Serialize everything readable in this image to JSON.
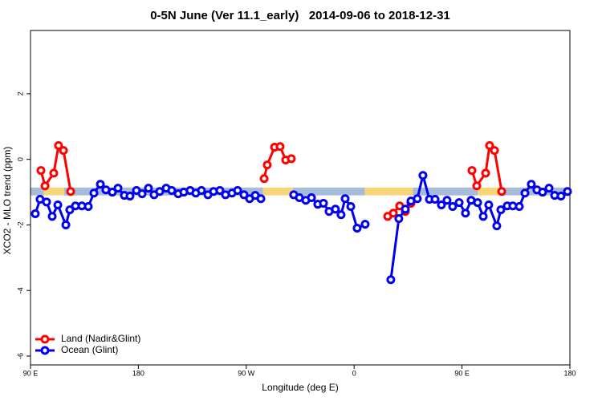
{
  "chart_data": {
    "type": "line",
    "title": "0-5N June (Ver 11.1_early)   2014-09-06 to 2018-12-31",
    "x_label": "Longitude (deg E)",
    "y_label": "XCO2 - MLO trend (ppm)",
    "xlim": [
      90,
      540
    ],
    "xticks": [
      {
        "value": 90,
        "label": "90 E"
      },
      {
        "value": 180,
        "label": "180"
      },
      {
        "value": 270,
        "label": "90 W"
      },
      {
        "value": 360,
        "label": "0"
      },
      {
        "value": 450,
        "label": "90 E"
      },
      {
        "value": 540,
        "label": "180"
      }
    ],
    "ylim": [
      -6.27,
      3.93
    ],
    "yticks": [
      -6,
      -4,
      -2,
      0,
      2
    ],
    "legend": "bottom-left",
    "surface_band": {
      "ymin": -1.1,
      "ymax": -0.86,
      "segments": [
        {
          "from": 90,
          "to": 101,
          "color": "#a7bcd8"
        },
        {
          "from": 101,
          "to": 118,
          "color": "#f7d57a"
        },
        {
          "from": 118,
          "to": 284,
          "color": "#a7bcd8"
        },
        {
          "from": 284,
          "to": 309,
          "color": "#f7d57a"
        },
        {
          "from": 309,
          "to": 369,
          "color": "#a7bcd8"
        },
        {
          "from": 369,
          "to": 409,
          "color": "#f7d57a"
        },
        {
          "from": 409,
          "to": 463,
          "color": "#a7bcd8"
        },
        {
          "from": 463,
          "to": 483,
          "color": "#f7d57a"
        },
        {
          "from": 483,
          "to": 540,
          "color": "#a7bcd8"
        }
      ]
    },
    "series": [
      {
        "name": "Land (Nadir&Glint)",
        "color": "#ff0000",
        "x": [
          98.7,
          102.1,
          109.4,
          113.4,
          117.5,
          123.5,
          null,
          284.9,
          287.5,
          293.6,
          298.2,
          302.9,
          307.6,
          null,
          388.0,
          392.7,
          398.0,
          402.7,
          407.4,
          null,
          458.3,
          462.3,
          469.7,
          473.0,
          477.1,
          483.1
        ],
        "values": [
          -0.34,
          -0.81,
          -0.42,
          0.42,
          0.27,
          -0.98,
          null,
          -0.59,
          -0.17,
          0.37,
          0.39,
          -0.02,
          0.02,
          null,
          -1.74,
          -1.64,
          -1.42,
          -1.59,
          -1.34,
          null,
          -0.34,
          -0.81,
          -0.42,
          0.42,
          0.27,
          -0.98
        ]
      },
      {
        "name": "Ocean (Glint)",
        "color": "#0000ee",
        "x": [
          94.0,
          98.0,
          103.4,
          108.1,
          112.8,
          119.5,
          122.8,
          127.5,
          132.9,
          138.2,
          142.9,
          148.3,
          152.9,
          158.3,
          163.0,
          168.3,
          173.0,
          178.4,
          183.1,
          188.4,
          193.1,
          197.8,
          203.2,
          207.8,
          213.2,
          217.9,
          223.2,
          227.9,
          232.6,
          238.0,
          242.7,
          248.0,
          252.7,
          258.1,
          262.8,
          268.1,
          272.8,
          277.5,
          282.2,
          null,
          309.6,
          314.3,
          319.7,
          324.4,
          329.7,
          334.4,
          339.1,
          344.4,
          349.1,
          352.5,
          357.2,
          362.5,
          369.2,
          null,
          390.6,
          397.3,
          402.7,
          407.4,
          412.7,
          417.4,
          422.8,
          427.5,
          432.8,
          437.5,
          442.2,
          447.6,
          452.9,
          457.6,
          463.0,
          467.7,
          472.3,
          479.0,
          482.4,
          487.7,
          492.4,
          497.8,
          502.5,
          507.8,
          512.5,
          517.2,
          522.6,
          527.3,
          532.6,
          538.0
        ],
        "values": [
          -1.66,
          -1.22,
          -1.3,
          -1.74,
          -1.39,
          -2.0,
          -1.54,
          -1.42,
          -1.42,
          -1.44,
          -1.03,
          -0.76,
          -0.93,
          -1.0,
          -0.88,
          -1.1,
          -1.12,
          -0.95,
          -1.05,
          -0.88,
          -1.08,
          -0.98,
          -0.88,
          -0.95,
          -1.05,
          -1.0,
          -0.95,
          -1.03,
          -0.95,
          -1.08,
          -0.98,
          -0.95,
          -1.08,
          -1.03,
          -0.95,
          -1.08,
          -1.2,
          -1.1,
          -1.2,
          null,
          -1.08,
          -1.17,
          -1.25,
          -1.17,
          -1.37,
          -1.34,
          -1.59,
          -1.52,
          -1.69,
          -1.2,
          -1.44,
          -2.1,
          -1.98,
          null,
          -3.67,
          -1.81,
          -1.52,
          -1.27,
          -1.2,
          -0.49,
          -1.22,
          -1.22,
          -1.39,
          -1.25,
          -1.44,
          -1.32,
          -1.64,
          -1.25,
          -1.32,
          -1.74,
          -1.39,
          -2.03,
          -1.54,
          -1.42,
          -1.42,
          -1.44,
          -1.03,
          -0.76,
          -0.93,
          -1.0,
          -0.88,
          -1.1,
          -1.12,
          -0.98
        ]
      }
    ]
  }
}
